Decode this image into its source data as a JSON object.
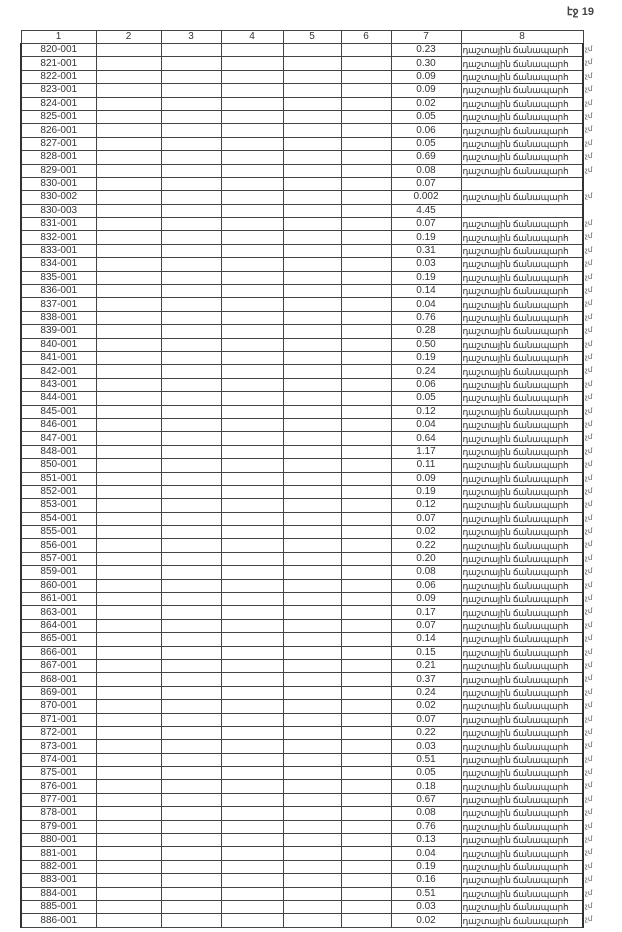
{
  "page_label": "էջ 19",
  "headers": [
    "1",
    "2",
    "3",
    "4",
    "5",
    "6",
    "7",
    "8"
  ],
  "road_label": "դաշտային ճանապարհ",
  "margin_mark": "չմ",
  "rows": [
    {
      "id": "820-001",
      "area": "0.23",
      "type": "դաշտային ճանապարհ"
    },
    {
      "id": "821-001",
      "area": "0.30",
      "type": "դաշտային ճանապարհ"
    },
    {
      "id": "822-001",
      "area": "0.09",
      "type": "դաշտային ճանապարհ"
    },
    {
      "id": "823-001",
      "area": "0.09",
      "type": "դաշտային ճանապարհ"
    },
    {
      "id": "824-001",
      "area": "0.02",
      "type": "դաշտային ճանապարհ"
    },
    {
      "id": "825-001",
      "area": "0.05",
      "type": "դաշտային ճանապարհ"
    },
    {
      "id": "826-001",
      "area": "0.06",
      "type": "դաշտային ճանապարհ"
    },
    {
      "id": "827-001",
      "area": "0.05",
      "type": "դաշտային ճանապարհ"
    },
    {
      "id": "828-001",
      "area": "0.69",
      "type": "դաշտային ճանապարհ"
    },
    {
      "id": "829-001",
      "area": "0.08",
      "type": "դաշտային ճանապարհ"
    },
    {
      "id": "830-001",
      "area": "0.07",
      "type": ""
    },
    {
      "id": "830-002",
      "area": "0.002",
      "type": "դաշտային ճանապարհ"
    },
    {
      "id": "830-003",
      "area": "4.45",
      "type": ""
    },
    {
      "id": "831-001",
      "area": "0.07",
      "type": "դաշտային ճանապարհ"
    },
    {
      "id": "832-001",
      "area": "0.19",
      "type": "դաշտային ճանապարհ"
    },
    {
      "id": "833-001",
      "area": "0.31",
      "type": "դաշտային ճանապարհ"
    },
    {
      "id": "834-001",
      "area": "0.03",
      "type": "դաշտային ճանապարհ"
    },
    {
      "id": "835-001",
      "area": "0.19",
      "type": "դաշտային ճանապարհ"
    },
    {
      "id": "836-001",
      "area": "0.14",
      "type": "դաշտային ճանապարհ"
    },
    {
      "id": "837-001",
      "area": "0.04",
      "type": "դաշտային ճանապարհ"
    },
    {
      "id": "838-001",
      "area": "0.76",
      "type": "դաշտային ճանապարհ"
    },
    {
      "id": "839-001",
      "area": "0.28",
      "type": "դաշտային ճանապարհ"
    },
    {
      "id": "840-001",
      "area": "0.50",
      "type": "դաշտային ճանապարհ"
    },
    {
      "id": "841-001",
      "area": "0.19",
      "type": "դաշտային ճանապարհ"
    },
    {
      "id": "842-001",
      "area": "0.24",
      "type": "դաշտային ճանապարհ"
    },
    {
      "id": "843-001",
      "area": "0.06",
      "type": "դաշտային ճանապարհ"
    },
    {
      "id": "844-001",
      "area": "0.05",
      "type": "դաշտային ճանապարհ"
    },
    {
      "id": "845-001",
      "area": "0.12",
      "type": "դաշտային ճանապարհ"
    },
    {
      "id": "846-001",
      "area": "0.04",
      "type": "դաշտային ճանապարհ"
    },
    {
      "id": "847-001",
      "area": "0.64",
      "type": "դաշտային ճանապարհ"
    },
    {
      "id": "848-001",
      "area": "1.17",
      "type": "դաշտային ճանապարհ"
    },
    {
      "id": "850-001",
      "area": "0.11",
      "type": "դաշտային ճանապարհ"
    },
    {
      "id": "851-001",
      "area": "0.09",
      "type": "դաշտային ճանապարհ"
    },
    {
      "id": "852-001",
      "area": "0.19",
      "type": "դաշտային ճանապարհ"
    },
    {
      "id": "853-001",
      "area": "0.12",
      "type": "դաշտային ճանապարհ"
    },
    {
      "id": "854-001",
      "area": "0.07",
      "type": "դաշտային ճանապարհ"
    },
    {
      "id": "855-001",
      "area": "0.02",
      "type": "դաշտային ճանապարհ"
    },
    {
      "id": "856-001",
      "area": "0.22",
      "type": "դաշտային ճանապարհ"
    },
    {
      "id": "857-001",
      "area": "0.20",
      "type": "դաշտային ճանապարհ"
    },
    {
      "id": "859-001",
      "area": "0.08",
      "type": "դաշտային ճանապարհ"
    },
    {
      "id": "860-001",
      "area": "0.06",
      "type": "դաշտային ճանապարհ"
    },
    {
      "id": "861-001",
      "area": "0.09",
      "type": "դաշտային ճանապարհ"
    },
    {
      "id": "863-001",
      "area": "0.17",
      "type": "դաշտային ճանապարհ"
    },
    {
      "id": "864-001",
      "area": "0.07",
      "type": "դաշտային ճանապարհ"
    },
    {
      "id": "865-001",
      "area": "0.14",
      "type": "դաշտային ճանապարհ"
    },
    {
      "id": "866-001",
      "area": "0.15",
      "type": "դաշտային ճանապարհ"
    },
    {
      "id": "867-001",
      "area": "0.21",
      "type": "դաշտային ճանապարհ"
    },
    {
      "id": "868-001",
      "area": "0.37",
      "type": "դաշտային ճանապարհ"
    },
    {
      "id": "869-001",
      "area": "0.24",
      "type": "դաշտային ճանապարհ"
    },
    {
      "id": "870-001",
      "area": "0.02",
      "type": "դաշտային ճանապարհ"
    },
    {
      "id": "871-001",
      "area": "0.07",
      "type": "դաշտային ճանապարհ"
    },
    {
      "id": "872-001",
      "area": "0.22",
      "type": "դաշտային ճանապարհ"
    },
    {
      "id": "873-001",
      "area": "0.03",
      "type": "դաշտային ճանապարհ"
    },
    {
      "id": "874-001",
      "area": "0.51",
      "type": "դաշտային ճանապարհ"
    },
    {
      "id": "875-001",
      "area": "0.05",
      "type": "դաշտային ճանապարհ"
    },
    {
      "id": "876-001",
      "area": "0.18",
      "type": "դաշտային ճանապարհ"
    },
    {
      "id": "877-001",
      "area": "0.67",
      "type": "դաշտային ճանապարհ"
    },
    {
      "id": "878-001",
      "area": "0.08",
      "type": "դաշտային ճանապարհ"
    },
    {
      "id": "879-001",
      "area": "0.76",
      "type": "դաշտային ճանապարհ"
    },
    {
      "id": "880-001",
      "area": "0.13",
      "type": "դաշտային ճանապարհ"
    },
    {
      "id": "881-001",
      "area": "0.04",
      "type": "դաշտային ճանապարհ"
    },
    {
      "id": "882-001",
      "area": "0.19",
      "type": "դաշտային ճանապարհ"
    },
    {
      "id": "883-001",
      "area": "0.16",
      "type": "դաշտային ճանապարհ"
    },
    {
      "id": "884-001",
      "area": "0.51",
      "type": "դաշտային ճանապարհ"
    },
    {
      "id": "885-001",
      "area": "0.03",
      "type": "դաշտային ճանապարհ"
    },
    {
      "id": "886-001",
      "area": "0.02",
      "type": "դաշտային ճանապարհ"
    }
  ]
}
